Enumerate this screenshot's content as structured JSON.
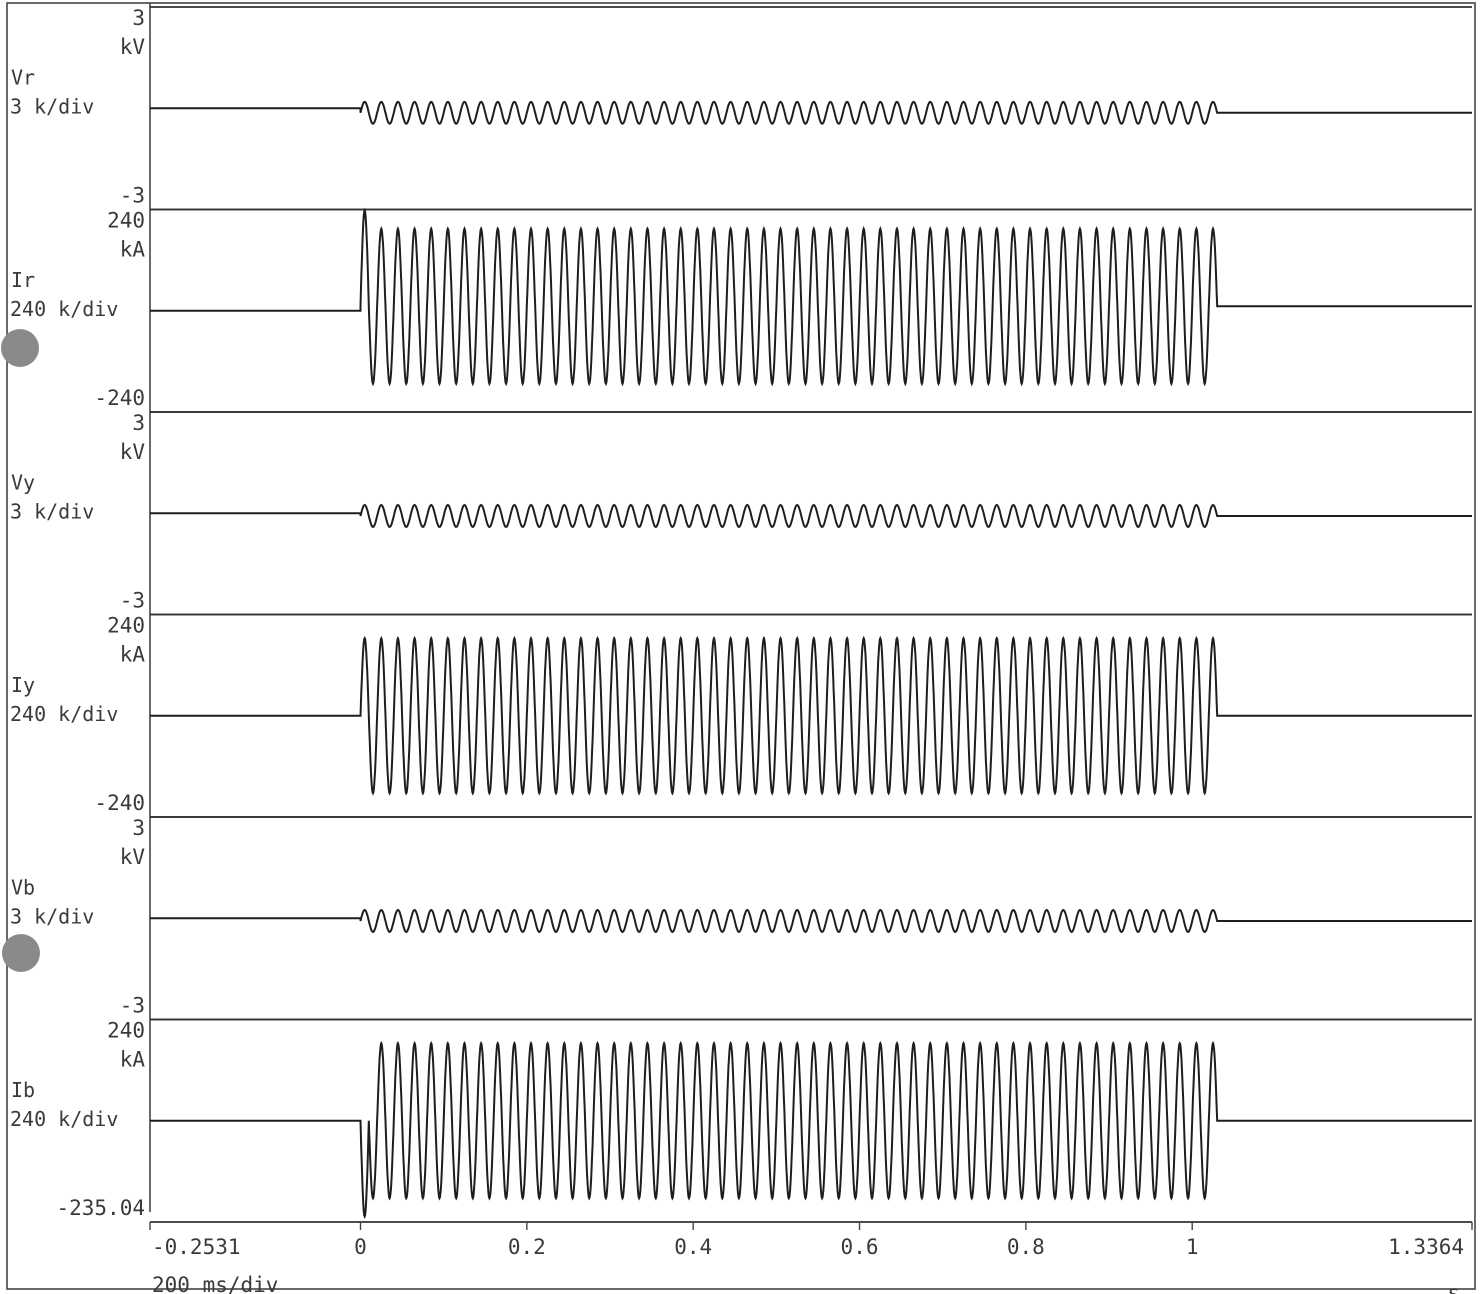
{
  "chart_data": {
    "type": "line",
    "x_range": [
      -0.2531,
      1.3364
    ],
    "x_ticks": [
      "-0.2531",
      "0",
      "0.2",
      "0.4",
      "0.6",
      "0.8",
      "1",
      "1.3364"
    ],
    "x_unit": "s",
    "x_scale": "200 ms/div",
    "grid": false,
    "channels": [
      {
        "name": "Vr",
        "scale": "3 k/div",
        "unit": "kV",
        "ymax": "3",
        "ymin": "-3",
        "on": 0.0,
        "off": 1.03,
        "amplitude_div": 0.12,
        "offset_div": -0.05,
        "frequency_hz": 50,
        "first_peak_div": 0.12
      },
      {
        "name": "Ir",
        "scale": "240 k/div",
        "unit": "kA",
        "ymax": "240",
        "ymin": "-240",
        "on": 0.0,
        "off": 1.03,
        "amplitude_div": 0.85,
        "offset_div": 0.05,
        "frequency_hz": 50,
        "first_peak_div": 1.05
      },
      {
        "name": "Vy",
        "scale": "3 k/div",
        "unit": "kV",
        "ymax": "3",
        "ymin": "-3",
        "on": 0.0,
        "off": 1.03,
        "amplitude_div": 0.12,
        "offset_div": -0.03,
        "frequency_hz": 50,
        "first_peak_div": 0.12
      },
      {
        "name": "Iy",
        "scale": "240 k/div",
        "unit": "kA",
        "ymax": "240",
        "ymin": "-240",
        "on": 0.0,
        "off": 1.03,
        "amplitude_div": 0.85,
        "offset_div": 0.0,
        "frequency_hz": 50,
        "first_peak_div": 0.85
      },
      {
        "name": "Vb",
        "scale": "3 k/div",
        "unit": "kV",
        "ymax": "3",
        "ymin": "-3",
        "on": 0.0,
        "off": 1.03,
        "amplitude_div": 0.12,
        "offset_div": -0.03,
        "frequency_hz": 50,
        "first_peak_div": 0.12
      },
      {
        "name": "Ib",
        "scale": "240 k/div",
        "unit": "kA",
        "ymax": "240",
        "ymin": "-235.04",
        "on": 0.0,
        "off": 1.03,
        "amplitude_div": 0.85,
        "offset_div": 0.0,
        "frequency_hz": 50,
        "first_peak_div": -1.05
      }
    ]
  }
}
